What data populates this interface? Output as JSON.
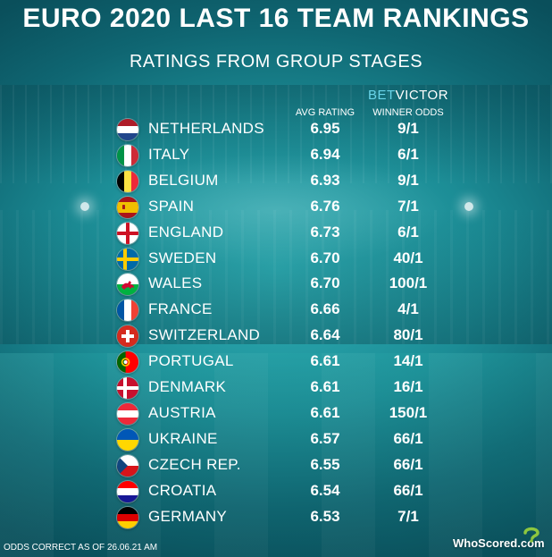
{
  "header": {
    "title": "EURO 2020 LAST 16 TEAM RANKINGS",
    "subtitle": "RATINGS FROM GROUP STAGES",
    "rating_column": "AVG RATING",
    "brand_part1": "BET",
    "brand_part2": "VICTOR",
    "odds_column": "WINNER ODDS"
  },
  "chart_data": {
    "type": "table",
    "title": "EURO 2020 LAST 16 TEAM RANKINGS",
    "subtitle": "RATINGS FROM GROUP STAGES",
    "columns": [
      "AVG RATING",
      "WINNER ODDS"
    ],
    "rows": [
      {
        "team": "NETHERLANDS",
        "rating": "6.95",
        "odds": "9/1"
      },
      {
        "team": "ITALY",
        "rating": "6.94",
        "odds": "6/1"
      },
      {
        "team": "BELGIUM",
        "rating": "6.93",
        "odds": "9/1"
      },
      {
        "team": "SPAIN",
        "rating": "6.76",
        "odds": "7/1"
      },
      {
        "team": "ENGLAND",
        "rating": "6.73",
        "odds": "6/1"
      },
      {
        "team": "SWEDEN",
        "rating": "6.70",
        "odds": "40/1"
      },
      {
        "team": "WALES",
        "rating": "6.70",
        "odds": "100/1"
      },
      {
        "team": "FRANCE",
        "rating": "6.66",
        "odds": "4/1"
      },
      {
        "team": "SWITZERLAND",
        "rating": "6.64",
        "odds": "80/1"
      },
      {
        "team": "PORTUGAL",
        "rating": "6.61",
        "odds": "14/1"
      },
      {
        "team": "DENMARK",
        "rating": "6.61",
        "odds": "16/1"
      },
      {
        "team": "AUSTRIA",
        "rating": "6.61",
        "odds": "150/1"
      },
      {
        "team": "UKRAINE",
        "rating": "6.57",
        "odds": "66/1"
      },
      {
        "team": "CZECH REP.",
        "rating": "6.55",
        "odds": "66/1"
      },
      {
        "team": "CROATIA",
        "rating": "6.54",
        "odds": "66/1"
      },
      {
        "team": "GERMANY",
        "rating": "6.53",
        "odds": "7/1"
      }
    ]
  },
  "flags": [
    {
      "icon": "netherlands-flag-icon",
      "layout": "h",
      "colors": [
        "#AE1C28",
        "#FFFFFF",
        "#21468B"
      ]
    },
    {
      "icon": "italy-flag-icon",
      "layout": "v",
      "colors": [
        "#009246",
        "#FFFFFF",
        "#CE2B37"
      ]
    },
    {
      "icon": "belgium-flag-icon",
      "layout": "v",
      "colors": [
        "#000000",
        "#FAE042",
        "#ED2939"
      ]
    },
    {
      "icon": "spain-flag-icon",
      "layout": "spain",
      "colors": [
        "#AA151B",
        "#F1BF00"
      ]
    },
    {
      "icon": "england-flag-icon",
      "layout": "cross",
      "colors": [
        "#FFFFFF",
        "#CE1124"
      ]
    },
    {
      "icon": "sweden-flag-icon",
      "layout": "nordic",
      "colors": [
        "#006AA7",
        "#FECC00"
      ]
    },
    {
      "icon": "wales-flag-icon",
      "layout": "wales",
      "colors": [
        "#FFFFFF",
        "#00B140",
        "#D30731"
      ]
    },
    {
      "icon": "france-flag-icon",
      "layout": "v",
      "colors": [
        "#0055A4",
        "#FFFFFF",
        "#EF4135"
      ]
    },
    {
      "icon": "switzerland-flag-icon",
      "layout": "swiss",
      "colors": [
        "#D52B1E",
        "#FFFFFF"
      ]
    },
    {
      "icon": "portugal-flag-icon",
      "layout": "portugal",
      "colors": [
        "#006600",
        "#FF0000",
        "#FFCC00"
      ]
    },
    {
      "icon": "denmark-flag-icon",
      "layout": "nordic",
      "colors": [
        "#C8102E",
        "#FFFFFF"
      ]
    },
    {
      "icon": "austria-flag-icon",
      "layout": "h",
      "colors": [
        "#ED2939",
        "#FFFFFF",
        "#ED2939"
      ]
    },
    {
      "icon": "ukraine-flag-icon",
      "layout": "h",
      "colors": [
        "#0057B7",
        "#FFD700"
      ]
    },
    {
      "icon": "czech-flag-icon",
      "layout": "czech",
      "colors": [
        "#FFFFFF",
        "#D7141A",
        "#11457E"
      ]
    },
    {
      "icon": "croatia-flag-icon",
      "layout": "h",
      "colors": [
        "#FF0000",
        "#FFFFFF",
        "#171796"
      ]
    },
    {
      "icon": "germany-flag-icon",
      "layout": "h",
      "colors": [
        "#000000",
        "#DD0000",
        "#FFCE00"
      ]
    }
  ],
  "footer": {
    "note": "ODDS CORRECT AS OF 26.06.21 AM",
    "logo_text": "WhoScored.com",
    "logo_mark_color": "#8dc63f"
  }
}
